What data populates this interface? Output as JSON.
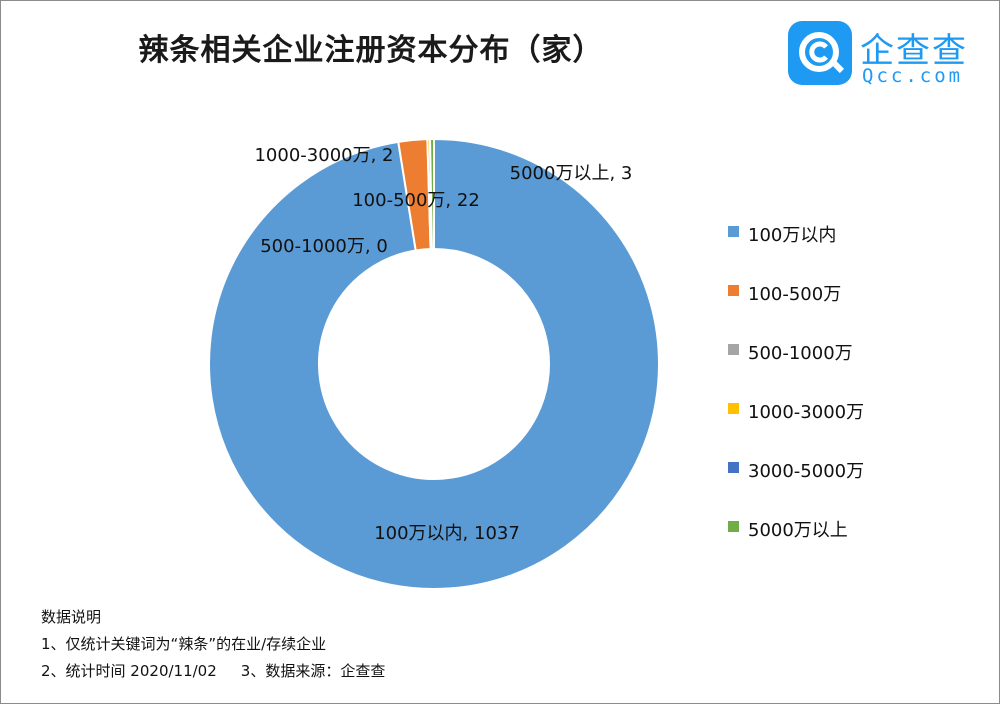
{
  "title": "辣条相关企业注册资本分布（家）",
  "logo": {
    "cn": "企查查",
    "en": "Qcc.com"
  },
  "chart_data": {
    "type": "pie",
    "title": "辣条相关企业注册资本分布（家）",
    "categories": [
      "100万以内",
      "100-500万",
      "500-1000万",
      "1000-3000万",
      "3000-5000万",
      "5000万以上"
    ],
    "values": [
      1037,
      22,
      0,
      2,
      0,
      3
    ],
    "colors": [
      "#5b9bd5",
      "#ed7d31",
      "#a5a5a5",
      "#ffc000",
      "#4472c4",
      "#70ad47"
    ],
    "legend_position": "right",
    "data_labels": [
      {
        "text": "100万以内, 1037",
        "series_index": 0
      },
      {
        "text": "100-500万, 22",
        "series_index": 1
      },
      {
        "text": "500-1000万, 0",
        "series_index": 2
      },
      {
        "text": "1000-3000万, 2",
        "series_index": 3
      },
      {
        "text": "5000万以上, 3",
        "series_index": 5
      }
    ]
  },
  "notes": {
    "heading": "数据说明",
    "line1": "1、仅统计关键词为“辣条”的在业/存续企业",
    "line2a": "2、统计时间 2020/11/02",
    "line2b": "3、数据来源：企查查"
  }
}
